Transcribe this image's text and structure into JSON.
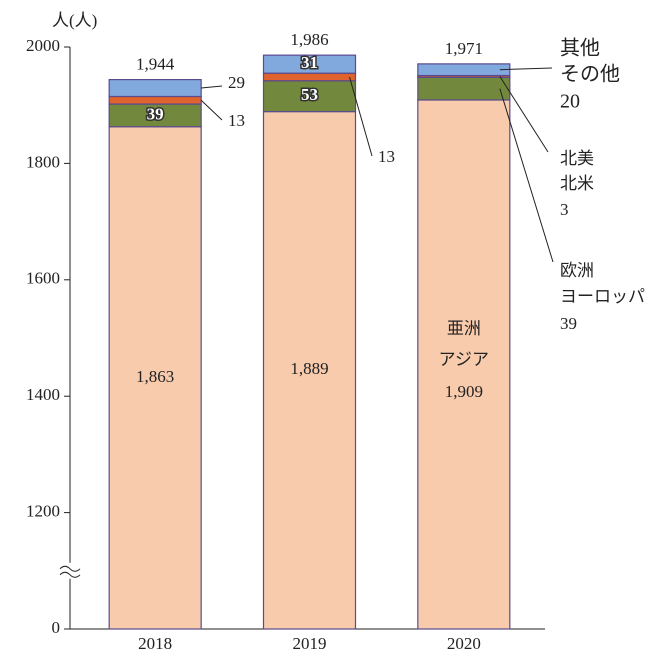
{
  "chart_data": {
    "type": "stacked_bar",
    "y_label": "人(人)",
    "categories": [
      "2018",
      "2019",
      "2020"
    ],
    "series": [
      {
        "name": "亜洲",
        "name_ja": "アジア",
        "color": "#f8cbad",
        "values": [
          1863,
          1889,
          1909
        ],
        "value_labels": [
          "1,863",
          "1,889",
          "1,909"
        ]
      },
      {
        "name": "欧洲",
        "name_ja": "ヨーロッパ",
        "color": "#72883c",
        "values": [
          39,
          53,
          39
        ]
      },
      {
        "name": "北美",
        "name_ja": "北米",
        "color": "#e0622c",
        "values": [
          13,
          13,
          3
        ]
      },
      {
        "name": "其他",
        "name_ja": "その他",
        "color": "#82a9dd",
        "values": [
          29,
          31,
          20
        ]
      }
    ],
    "totals": [
      1944,
      1986,
      1971
    ],
    "total_labels": [
      "1,944",
      "1,986",
      "1,971"
    ],
    "ylim": [
      0,
      2000
    ],
    "yticks": [
      0,
      1200,
      1400,
      1600,
      1800,
      2000
    ],
    "axis_break": true
  }
}
